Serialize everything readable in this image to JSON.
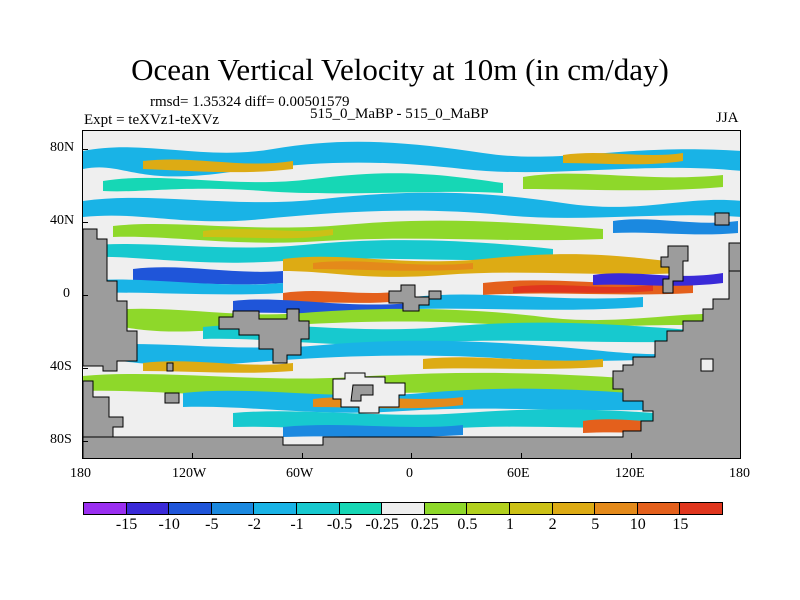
{
  "title": "Ocean Vertical Velocity at 10m (in cm/day)",
  "stats": "rmsd= 1.35324 diff= 0.00501579",
  "expt": "Expt = teXVz1-teXVz",
  "comparison": "515_0_MaBP - 515_0_MaBP",
  "season": "JJA",
  "map": {
    "lat_ticks": [
      "80N",
      "40N",
      "0",
      "40S",
      "80S"
    ],
    "lon_ticks": [
      "180",
      "120W",
      "60W",
      "0",
      "60E",
      "120E",
      "180"
    ]
  },
  "colorbar": {
    "colors": [
      "#9a2ff0",
      "#3a2ad8",
      "#1f55d9",
      "#1b89e0",
      "#19b3e6",
      "#17c9cf",
      "#16d7b5",
      "#eeeeee",
      "#8ed82a",
      "#b2d01e",
      "#ccc116",
      "#ddab14",
      "#e48a1a",
      "#e4601c",
      "#e0361e"
    ],
    "labels": [
      "-15",
      "-10",
      "-5",
      "-2",
      "-1",
      "-0.5",
      "-0.25",
      "0.25",
      "0.5",
      "1",
      "2",
      "5",
      "10",
      "15"
    ]
  },
  "colors": {
    "land": "#9c9c9c",
    "background": "#f0f0f0"
  }
}
